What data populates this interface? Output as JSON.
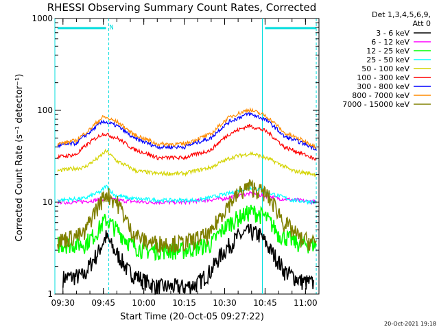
{
  "chart_data": {
    "type": "line",
    "title": "RHESSI Observing Summary Count Rates, Corrected",
    "xlabel": "Start Time (20-Oct-05 09:27:22)",
    "ylabel": "Corrected Count Rate (s⁻¹ detector⁻¹)",
    "y_scale": "log",
    "ylim": [
      1,
      1000
    ],
    "xlim": [
      "09:27",
      "11:05"
    ],
    "x_ticks": [
      "09:30",
      "09:45",
      "10:00",
      "10:15",
      "10:30",
      "10:45",
      "11:00"
    ],
    "y_ticks": [
      "1",
      "10",
      "100",
      "1000"
    ],
    "legend_header": [
      "Det 1,3,4,5,6,9,",
      "Att 0"
    ],
    "legend_position": "right",
    "markers": {
      "cyan_bar_label": "N",
      "vertical_lines": [
        "09:27",
        "09:47",
        "10:44",
        "11:04"
      ],
      "bars": [
        [
          "09:28",
          "09:46"
        ],
        [
          "10:45",
          "11:04"
        ]
      ]
    },
    "series": [
      {
        "name": "3 - 6 keV",
        "color": "#000000",
        "x": [
          "09:30",
          "09:38",
          "09:43",
          "09:46",
          "09:49",
          "09:54",
          "10:00",
          "10:05",
          "10:15",
          "10:20",
          "10:25",
          "10:30",
          "10:35",
          "10:39",
          "10:43",
          "10:47",
          "10:52",
          "10:58",
          "11:03"
        ],
        "y": [
          1.5,
          1.6,
          2.8,
          4.2,
          3.0,
          1.8,
          1.4,
          1.2,
          1.2,
          1.3,
          1.8,
          3.0,
          4.2,
          4.8,
          4.4,
          3.0,
          1.8,
          1.4,
          1.3
        ]
      },
      {
        "name": "6 - 12 keV",
        "color": "#ff00ff",
        "x": [
          "09:28",
          "09:35",
          "09:42",
          "09:46",
          "09:50",
          "10:00",
          "10:15",
          "10:30",
          "10:40",
          "10:50",
          "11:04"
        ],
        "y": [
          10,
          10,
          10.5,
          11,
          10.5,
          10,
          10,
          11,
          12.5,
          11,
          10
        ]
      },
      {
        "name": "12 - 25 keV",
        "color": "#00ff00",
        "x": [
          "09:28",
          "09:38",
          "09:42",
          "09:46",
          "09:50",
          "09:55",
          "10:00",
          "10:05",
          "10:15",
          "10:25",
          "10:32",
          "10:40",
          "10:45",
          "10:50",
          "10:58",
          "11:04"
        ],
        "y": [
          3.5,
          3.5,
          4.5,
          6.5,
          5.0,
          3.5,
          3.0,
          3.0,
          3.0,
          3.5,
          6.0,
          8.0,
          7.0,
          4.5,
          3.5,
          3.5
        ]
      },
      {
        "name": "25 - 50 keV",
        "color": "#00ffff",
        "x": [
          "09:28",
          "09:38",
          "09:44",
          "09:46",
          "09:49",
          "09:55",
          "10:05",
          "10:20",
          "10:32",
          "10:40",
          "10:47",
          "10:55",
          "11:04"
        ],
        "y": [
          10.5,
          11,
          13,
          15,
          12,
          11,
          10.5,
          10.5,
          12.5,
          14.5,
          12.5,
          10.5,
          10
        ]
      },
      {
        "name": "50 - 100 keV",
        "color": "#d4d400",
        "x": [
          "09:28",
          "09:38",
          "09:43",
          "09:46",
          "09:50",
          "09:57",
          "10:05",
          "10:15",
          "10:25",
          "10:33",
          "10:40",
          "10:47",
          "10:55",
          "11:04"
        ],
        "y": [
          22,
          24,
          30,
          36,
          28,
          22,
          20.5,
          20.5,
          24,
          31,
          34,
          29,
          22,
          20
        ]
      },
      {
        "name": "100 - 300 keV",
        "color": "#ff0000",
        "x": [
          "09:28",
          "09:35",
          "09:40",
          "09:45",
          "09:50",
          "09:56",
          "10:05",
          "10:15",
          "10:25",
          "10:32",
          "10:39",
          "10:45",
          "10:52",
          "11:04"
        ],
        "y": [
          31,
          33,
          45,
          56,
          50,
          38,
          30.5,
          30.5,
          37,
          56,
          68,
          60,
          40,
          29
        ]
      },
      {
        "name": "300 - 800 keV",
        "color": "#0000ff",
        "x": [
          "09:28",
          "09:35",
          "09:40",
          "09:45",
          "09:50",
          "09:56",
          "10:05",
          "10:15",
          "10:25",
          "10:32",
          "10:39",
          "10:45",
          "10:52",
          "11:04"
        ],
        "y": [
          41,
          44,
          58,
          76,
          68,
          50,
          40,
          40,
          50,
          76,
          92,
          80,
          52,
          38
        ]
      },
      {
        "name": "800 - 7000 keV",
        "color": "#ff8c00",
        "x": [
          "09:28",
          "09:35",
          "09:40",
          "09:45",
          "09:50",
          "09:56",
          "10:05",
          "10:15",
          "10:25",
          "10:32",
          "10:39",
          "10:45",
          "10:52",
          "11:04"
        ],
        "y": [
          43,
          47,
          62,
          85,
          75,
          55,
          43,
          43,
          55,
          85,
          102,
          88,
          57,
          40
        ]
      },
      {
        "name": "7000 - 15000 keV",
        "color": "#808000",
        "x": [
          "09:28",
          "09:38",
          "09:43",
          "09:46",
          "09:50",
          "09:55",
          "10:00",
          "10:05",
          "10:15",
          "10:25",
          "10:32",
          "10:39",
          "10:45",
          "10:52",
          "10:58",
          "11:04"
        ],
        "y": [
          3.8,
          4.5,
          9.0,
          12.5,
          10.0,
          5.0,
          3.8,
          3.6,
          3.6,
          4.5,
          10.0,
          15.0,
          12.5,
          6.0,
          4.0,
          3.6
        ]
      }
    ]
  },
  "footer_timestamp": "20-Oct-2021 19:18"
}
